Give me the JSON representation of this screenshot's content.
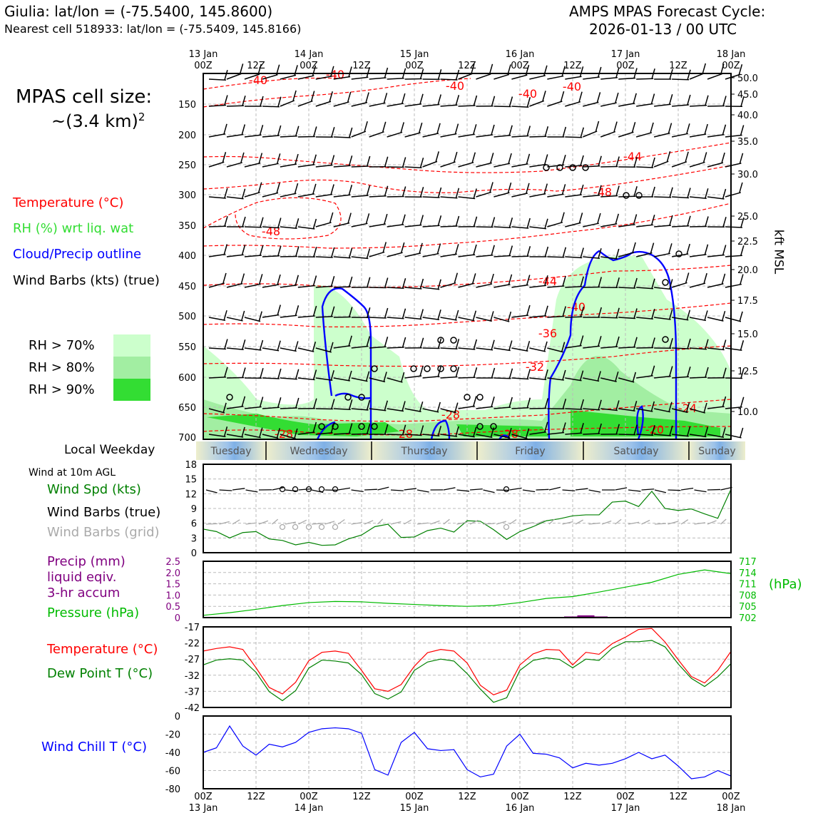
{
  "header": {
    "site_line": "Giulia: lat/lon = (-75.5400, 145.8600)",
    "cell_line": "Nearest cell 518933: lat/lon = (-75.5409, 145.8166)",
    "cycle_line1": "AMPS MPAS Forecast Cycle:",
    "cycle_line2": "2026-01-13 / 00 UTC"
  },
  "sidebar": {
    "cell_size_line1": "MPAS cell size:",
    "cell_size_line2": "~(3.4 km)",
    "cell_size_exp": "2",
    "legend_temperature": "Temperature (°C)",
    "legend_rh": "RH (%) wrt liq. wat",
    "legend_cloud": "Cloud/Precip outline",
    "legend_wind": "Wind Barbs (kts) (true)",
    "rh_levels": [
      "RH > 70%",
      "RH > 80%",
      "RH > 90%"
    ],
    "local_weekday": "Local Weekday",
    "wind_10m": "Wind at 10m AGL",
    "wind_spd": "Wind Spd (kts)",
    "wind_barbs_true": "Wind Barbs (true)",
    "wind_barbs_grid": "Wind Barbs (grid)",
    "precip_line1": "Precip (mm)",
    "precip_line2": "liquid eqiv.",
    "precip_line3": "3-hr accum",
    "pressure": "Pressure (hPa)",
    "temperature": "Temperature (°C)",
    "dewpoint": "Dew Point T (°C)",
    "windchill": "Wind Chill T (°C)",
    "hpa_unit": "(hPa)",
    "kft_msl": "kft MSL"
  },
  "colors": {
    "temperature": "#ff0000",
    "rh": "#33cc33",
    "cloud": "#0000ff",
    "wind": "#000000",
    "wind_grid": "#aaaaaa",
    "precip": "#800080",
    "pressure": "#00bb00",
    "dewpoint": "#008000",
    "windchill": "#0000ff",
    "rh70": "#ccffcc",
    "rh80": "#a2eea2",
    "rh90": "#33dd33"
  },
  "chart_data": [
    {
      "type": "time-height",
      "time_ticks": [
        {
          "top": "13 Jan",
          "bottom": "00Z"
        },
        {
          "top": "",
          "bottom": "12Z"
        },
        {
          "top": "14 Jan",
          "bottom": "00Z"
        },
        {
          "top": "",
          "bottom": "12Z"
        },
        {
          "top": "15 Jan",
          "bottom": "00Z"
        },
        {
          "top": "",
          "bottom": "12Z"
        },
        {
          "top": "16 Jan",
          "bottom": "00Z"
        },
        {
          "top": "",
          "bottom": "12Z"
        },
        {
          "top": "17 Jan",
          "bottom": "00Z"
        },
        {
          "top": "",
          "bottom": "12Z"
        },
        {
          "top": "18 Jan",
          "bottom": "00Z"
        }
      ],
      "pressure_ticks": [
        "150",
        "200",
        "250",
        "300",
        "350",
        "400",
        "450",
        "500",
        "550",
        "600",
        "650",
        "700"
      ],
      "kft_ticks": [
        "50.0",
        "45.0",
        "40.0",
        "35.0",
        "30.0",
        "25.0",
        "22.5",
        "20.0",
        "17.5",
        "15.0",
        "12.5",
        "10.0"
      ],
      "temperature_labels": [
        "-40",
        "-40",
        "-40",
        "-40",
        "-40",
        "-44",
        "-48",
        "-48",
        "-44",
        "-40",
        "-36",
        "-32",
        "-28",
        "-28",
        "-28",
        "-28",
        "-24",
        "-20"
      ]
    },
    {
      "type": "weekday_bar",
      "days": [
        "Tuesday",
        "Wednesday",
        "Thursday",
        "Friday",
        "Saturday",
        "Sunday"
      ]
    },
    {
      "type": "line",
      "title": "Wind Spd (kts)",
      "yticks": [
        "0",
        "3",
        "6",
        "9",
        "12",
        "15",
        "18"
      ],
      "ylim": [
        0,
        18
      ],
      "x_hours": [
        0,
        3,
        6,
        9,
        12,
        15,
        18,
        21,
        24,
        27,
        30,
        33,
        36,
        39,
        42,
        45,
        48,
        51,
        54,
        57,
        60,
        63,
        66,
        69,
        72,
        75,
        78,
        81,
        84,
        87,
        90,
        93,
        96,
        99,
        102,
        105,
        108,
        111,
        114,
        117,
        120
      ],
      "values": [
        4.8,
        4.3,
        3.0,
        4.1,
        4.3,
        2.8,
        2.5,
        1.6,
        2.1,
        1.5,
        1.6,
        2.8,
        3.6,
        5.3,
        5.8,
        3.1,
        3.2,
        4.5,
        5.0,
        4.2,
        6.5,
        6.4,
        4.7,
        2.7,
        4.3,
        5.3,
        6.5,
        6.9,
        7.5,
        7.7,
        7.7,
        10.3,
        10.5,
        9.4,
        12.5,
        9.0,
        8.6,
        8.9,
        7.9,
        7.0,
        12.9
      ]
    },
    {
      "type": "line",
      "title": "Pressure (hPa)",
      "precip_ticks": [
        "0",
        "0.5",
        "1.0",
        "1.5",
        "2.0",
        "2.5"
      ],
      "pressure_ticks": [
        "702",
        "705",
        "708",
        "711",
        "714",
        "717"
      ],
      "ylim": [
        702,
        717
      ],
      "x_hours": [
        0,
        6,
        12,
        18,
        24,
        30,
        36,
        42,
        48,
        54,
        60,
        66,
        72,
        78,
        84,
        90,
        96,
        102,
        108,
        114,
        120
      ],
      "values": [
        702.6,
        703.3,
        704.2,
        705.2,
        706.0,
        706.3,
        706.2,
        705.8,
        705.5,
        705.2,
        705.0,
        705.2,
        706.0,
        707.1,
        707.6,
        708.8,
        710.1,
        711.4,
        713.5,
        714.7,
        713.7
      ],
      "precip_values": [
        {
          "hours": 84,
          "mm": 0.05
        },
        {
          "hours": 87,
          "mm": 0.1
        },
        {
          "hours": 90,
          "mm": 0.05
        }
      ]
    },
    {
      "type": "line",
      "title": "Temperature (°C)",
      "yticks": [
        "-42",
        "-37",
        "-32",
        "-27",
        "-22",
        "-17"
      ],
      "ylim": [
        -42,
        -17
      ],
      "x_hours": [
        0,
        3,
        6,
        9,
        12,
        15,
        18,
        21,
        24,
        27,
        30,
        33,
        36,
        39,
        42,
        45,
        48,
        51,
        54,
        57,
        60,
        63,
        66,
        69,
        72,
        75,
        78,
        81,
        84,
        87,
        90,
        93,
        96,
        99,
        102,
        105,
        108,
        111,
        114,
        117,
        120
      ],
      "series": [
        {
          "name": "Temperature (°C)",
          "values": [
            -24.5,
            -23.7,
            -23.2,
            -24.0,
            -29.7,
            -35.8,
            -37.8,
            -34.2,
            -27.5,
            -24.9,
            -24.5,
            -25.2,
            -30.5,
            -36.2,
            -37.0,
            -34.9,
            -29.2,
            -25.0,
            -24.0,
            -24.5,
            -28.2,
            -35.1,
            -38.1,
            -36.6,
            -28.8,
            -25.4,
            -24.0,
            -24.2,
            -28.8,
            -24.9,
            -25.5,
            -22.2,
            -20.2,
            -17.8,
            -17.5,
            -21.7,
            -27.2,
            -32.4,
            -34.4,
            -30.5,
            -24.6
          ]
        },
        {
          "name": "Dew Point T (°C)",
          "values": [
            -28.8,
            -27.3,
            -26.9,
            -27.3,
            -31.1,
            -37.1,
            -39.9,
            -36.8,
            -29.8,
            -27.3,
            -27.6,
            -28.2,
            -31.8,
            -37.7,
            -39.4,
            -37.2,
            -30.5,
            -27.9,
            -27.0,
            -27.6,
            -31.5,
            -36.3,
            -40.4,
            -39.0,
            -30.5,
            -27.4,
            -26.6,
            -27.1,
            -29.7,
            -27.0,
            -27.4,
            -23.6,
            -21.6,
            -21.6,
            -21.2,
            -23.2,
            -28.5,
            -33.0,
            -35.5,
            -32.5,
            -28.4
          ]
        }
      ]
    },
    {
      "type": "line",
      "title": "Wind Chill T (°C)",
      "yticks": [
        "-80",
        "-60",
        "-40",
        "-20",
        "0"
      ],
      "ylim": [
        -80,
        0
      ],
      "x_hours": [
        0,
        3,
        6,
        9,
        12,
        15,
        18,
        21,
        24,
        27,
        30,
        33,
        36,
        39,
        42,
        45,
        48,
        51,
        54,
        57,
        60,
        63,
        66,
        69,
        72,
        75,
        78,
        81,
        84,
        87,
        90,
        93,
        96,
        99,
        102,
        105,
        108,
        111,
        114,
        117,
        120
      ],
      "values": [
        -40,
        -35,
        -11,
        -33,
        -43,
        -31,
        -34,
        -29,
        -18,
        -14,
        -13,
        -14,
        -19,
        -59,
        -65,
        -29,
        -18,
        -36,
        -38,
        -37,
        -59,
        -67,
        -64,
        -33,
        -20,
        -41,
        -42,
        -46,
        -57,
        -52,
        -54,
        -52,
        -47,
        -40,
        -47,
        -43,
        -55,
        -69,
        -67,
        -60,
        -66
      ]
    }
  ]
}
